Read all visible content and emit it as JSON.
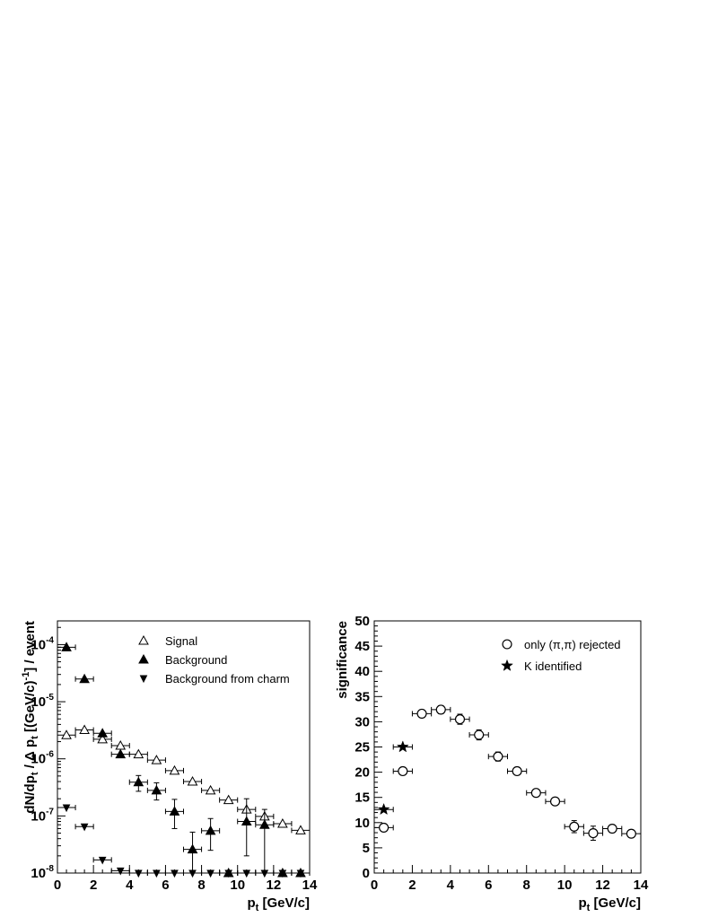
{
  "chart_data": [
    {
      "type": "scatter",
      "yscale": "log",
      "xlabel": "p_t [GeV/c]",
      "ylabel": "dN/dp_t / Δ p_t [(GeV/c)^-1] / event",
      "xlim": [
        0,
        14
      ],
      "ylim": [
        1e-08,
        0.00026
      ],
      "xticks": [
        "0",
        "2",
        "4",
        "6",
        "8",
        "10",
        "12",
        "14"
      ],
      "yticks": [
        {
          "base": "10",
          "exp": "-8",
          "value": 1e-08
        },
        {
          "base": "10",
          "exp": "-7",
          "value": 1e-07
        },
        {
          "base": "10",
          "exp": "-6",
          "value": 1e-06
        },
        {
          "base": "10",
          "exp": "-5",
          "value": 1e-05
        },
        {
          "base": "10",
          "exp": "-4",
          "value": 0.0001
        }
      ],
      "legend_position": "top-right",
      "series": [
        {
          "name": "Signal",
          "marker": "triangle-up-open",
          "x": [
            0.5,
            1.5,
            2.5,
            3.5,
            4.5,
            5.5,
            6.5,
            7.5,
            8.5,
            9.5,
            10.5,
            11.5,
            12.5,
            13.5
          ],
          "y": [
            2.6e-06,
            3.2e-06,
            2.2e-06,
            1.7e-06,
            1.2e-06,
            9.5e-07,
            6.2e-07,
            4e-07,
            2.8e-07,
            1.9e-07,
            1.3e-07,
            9.8e-08,
            7.3e-08,
            5.6e-08
          ],
          "yerr_lo": [
            0,
            0,
            0,
            0,
            0,
            0,
            0,
            0,
            0,
            0,
            0,
            0,
            0,
            0
          ],
          "yerr_hi": [
            0,
            0,
            0,
            0,
            0,
            0,
            0,
            0,
            0,
            0,
            0,
            0,
            0,
            0
          ]
        },
        {
          "name": "Background",
          "marker": "triangle-up-filled",
          "x": [
            0.5,
            1.5,
            2.5,
            3.5,
            4.5,
            5.5,
            6.5,
            7.5,
            8.5,
            9.5,
            10.5,
            11.5,
            12.5,
            13.5
          ],
          "y": [
            9e-05,
            2.5e-05,
            2.8e-06,
            1.2e-06,
            3.9e-07,
            2.8e-07,
            1.2e-07,
            2.6e-08,
            5.5e-08,
            1e-08,
            8e-08,
            7e-08,
            1e-08,
            1e-08
          ],
          "yerr_lo": [
            0,
            0,
            0,
            0,
            1.2e-07,
            9e-08,
            6e-08,
            1.6e-08,
            3e-08,
            0,
            6e-08,
            6e-08,
            0,
            0
          ],
          "yerr_hi": [
            0,
            0,
            0,
            0,
            1.2e-07,
            1e-07,
            7.5e-08,
            2.6e-08,
            3.5e-08,
            0,
            1.2e-07,
            6e-08,
            0,
            0
          ]
        },
        {
          "name": "Background from charm",
          "marker": "triangle-down-filled",
          "x": [
            0.5,
            1.5,
            2.5,
            3.5,
            4.5,
            5.5,
            6.5,
            7.5,
            8.5,
            9.5,
            10.5,
            11.5,
            12.5,
            13.5
          ],
          "y": [
            1.4e-07,
            6.5e-08,
            1.7e-08,
            1.1e-08,
            1e-08,
            1e-08,
            1e-08,
            1e-08,
            1e-08,
            1e-08,
            1e-08,
            1e-08,
            1e-08,
            1e-08
          ],
          "yerr_lo": [
            0,
            0,
            0,
            0,
            0,
            0,
            0,
            0,
            0,
            0,
            0,
            0,
            0,
            0
          ],
          "yerr_hi": [
            0,
            0,
            0,
            0,
            0,
            0,
            0,
            0,
            0,
            0,
            0,
            0,
            0,
            0
          ]
        }
      ]
    },
    {
      "type": "scatter",
      "yscale": "linear",
      "xlabel": "p_t [GeV/c]",
      "ylabel": "significance",
      "xlim": [
        0,
        14
      ],
      "ylim": [
        0,
        50
      ],
      "xticks": [
        "0",
        "2",
        "4",
        "6",
        "8",
        "10",
        "12",
        "14"
      ],
      "yticks": [
        "0",
        "5",
        "10",
        "15",
        "20",
        "25",
        "30",
        "35",
        "40",
        "45",
        "50"
      ],
      "legend_position": "top-right",
      "series": [
        {
          "name": "only (π,π) rejected",
          "marker": "circle-open",
          "x": [
            0.5,
            1.5,
            2.5,
            3.5,
            4.5,
            5.5,
            6.5,
            7.5,
            8.5,
            9.5,
            10.5,
            11.5,
            12.5,
            13.5
          ],
          "y": [
            9.0,
            20.2,
            31.6,
            32.4,
            30.5,
            27.4,
            23.1,
            20.2,
            15.9,
            14.2,
            9.2,
            7.9,
            8.8,
            7.8
          ],
          "yerr": [
            0.5,
            0.6,
            0.5,
            0.8,
            1.0,
            1.0,
            0.9,
            0.6,
            0.6,
            0.5,
            1.2,
            1.4,
            0.6,
            0.4
          ]
        },
        {
          "name": "K identified",
          "marker": "star-filled",
          "x": [
            0.5,
            1.5
          ],
          "y": [
            12.6,
            25.0
          ],
          "yerr": [
            0,
            0
          ]
        }
      ]
    }
  ]
}
